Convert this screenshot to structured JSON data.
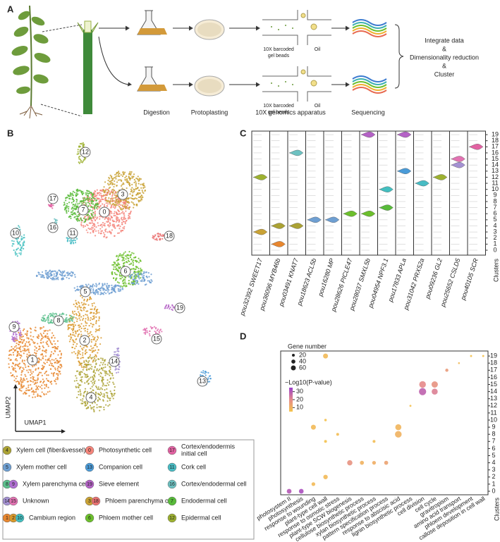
{
  "panel_a": {
    "label": "A",
    "chips": [
      {
        "beads": [
          "10X barcoded",
          "gel beads"
        ],
        "oil": "Oil"
      },
      {
        "beads": [
          "10X barcoded",
          "gel beads"
        ],
        "oil": "Oil"
      }
    ],
    "steps": [
      "Digestion",
      "Protoplasting",
      "10X genomics apparatus",
      "Sequencing"
    ],
    "summary": [
      "Integrate data",
      "&",
      "Dimensionality reduction",
      "&",
      "Cluster"
    ]
  },
  "panel_b": {
    "label": "B",
    "clusters": [
      0,
      1,
      2,
      3,
      4,
      5,
      6,
      7,
      8,
      9,
      10,
      11,
      12,
      13,
      14,
      15,
      16,
      17,
      18,
      19
    ],
    "cluster_colors": [
      "#f4857b",
      "#e8872f",
      "#d9992b",
      "#c9a235",
      "#aba234",
      "#6e9fd2",
      "#6cbf2c",
      "#58bb3a",
      "#5bbf8c",
      "#b06fd2",
      "#43bfc0",
      "#48bcc4",
      "#9db130",
      "#4a9bd8",
      "#a491d2",
      "#e272b2",
      "#6dc1c1",
      "#e262a2",
      "#ea7272",
      "#b462c6"
    ],
    "x_label": "UMAP1",
    "y_label": "UMAP2",
    "legend": [
      {
        "clusters": [
          4
        ],
        "label": "Xylem cell (fiber&vessel)"
      },
      {
        "clusters": [
          5
        ],
        "label": "Xylem mother cell"
      },
      {
        "clusters": [
          8,
          9
        ],
        "label": "Xylem parenchyma cell"
      },
      {
        "clusters": [
          14,
          15
        ],
        "label": "Unknown"
      },
      {
        "clusters": [
          1,
          2,
          10
        ],
        "label": "Cambium region"
      },
      {
        "clusters": [
          0
        ],
        "label": "Photosynthetic cell"
      },
      {
        "clusters": [
          13
        ],
        "label": "Companion cell"
      },
      {
        "clusters": [
          19
        ],
        "label": "Sieve element"
      },
      {
        "clusters": [
          3,
          18
        ],
        "label": "Phloem parenchyma cell"
      },
      {
        "clusters": [
          6
        ],
        "label": "Phloem mother cell"
      },
      {
        "clusters": [
          17
        ],
        "label": [
          "Cortex/endodermis",
          "initial cell"
        ]
      },
      {
        "clusters": [
          11
        ],
        "label": "Cork  cell"
      },
      {
        "clusters": [
          16
        ],
        "label": "Cortex/endodermal cell"
      },
      {
        "clusters": [
          7
        ],
        "label": "Endodermal cell"
      },
      {
        "clusters": [
          12
        ],
        "label": "Epidermal cell"
      }
    ]
  },
  "panel_c": {
    "label": "C",
    "genes": [
      "pou32392 SWEET17",
      "pou36096 MYB46b",
      "pou03491 KNAT7",
      "pou18623 ACL5b",
      "pou16280 MP",
      "pou28626 PICLE47",
      "pou28037 SMXL5b",
      "pou04954 NPF3.1",
      "pou17833 APLa",
      "pou31042 PRX52a",
      "pou09236 GL2",
      "pou25652 CSLD5",
      "pou40105 SCR"
    ],
    "clusters": [
      0,
      1,
      2,
      3,
      4,
      5,
      6,
      7,
      8,
      9,
      10,
      11,
      12,
      13,
      14,
      15,
      16,
      17,
      18,
      19
    ],
    "y_label": "Clusters",
    "violins": [
      {
        "gene": 0,
        "cluster": 3
      },
      {
        "gene": 0,
        "cluster": 12
      },
      {
        "gene": 1,
        "cluster": 1
      },
      {
        "gene": 1,
        "cluster": 4
      },
      {
        "gene": 2,
        "cluster": 4
      },
      {
        "gene": 2,
        "cluster": 16
      },
      {
        "gene": 3,
        "cluster": 5
      },
      {
        "gene": 4,
        "cluster": 5
      },
      {
        "gene": 5,
        "cluster": 6
      },
      {
        "gene": 6,
        "cluster": 6
      },
      {
        "gene": 6,
        "cluster": 19
      },
      {
        "gene": 7,
        "cluster": 7
      },
      {
        "gene": 7,
        "cluster": 10
      },
      {
        "gene": 8,
        "cluster": 13
      },
      {
        "gene": 8,
        "cluster": 19
      },
      {
        "gene": 9,
        "cluster": 11
      },
      {
        "gene": 10,
        "cluster": 12
      },
      {
        "gene": 11,
        "cluster": 14
      },
      {
        "gene": 11,
        "cluster": 15
      },
      {
        "gene": 12,
        "cluster": 17
      }
    ]
  },
  "panel_d": {
    "label": "D",
    "terms": [
      "photosystem II",
      "photosynthesis",
      "response to wounding",
      "plant-type cell wall",
      "response to osmotic stress",
      "plant-type SCW biogenesis",
      "cellulose biosynthetic process",
      "xylan biosynthetic process",
      "pattern specification process",
      "response to abscisic acid",
      "lignin biosynthetic process",
      "cell division",
      "cell cycle",
      "gravitropism",
      "amino acid transport",
      "phloem development",
      "callose deposition in cell wall"
    ],
    "clusters": [
      0,
      1,
      2,
      3,
      4,
      5,
      6,
      7,
      8,
      9,
      10,
      11,
      12,
      13,
      14,
      15,
      16,
      17,
      18,
      19
    ],
    "y_label": "Clusters",
    "size_legend": {
      "title": "Gene number",
      "values": [
        20,
        40,
        60
      ]
    },
    "color_legend": {
      "title": "−Log10(P-value)",
      "ticks": [
        30,
        20,
        10
      ],
      "clim": [
        5,
        35
      ],
      "colors": [
        "#f5c54a",
        "#e58a8a",
        "#9b3fcb"
      ]
    },
    "dots": [
      {
        "term": 3,
        "cluster": 19,
        "genes": 60,
        "log_p": 8
      },
      {
        "term": 15,
        "cluster": 19,
        "genes": 10,
        "log_p": 6
      },
      {
        "term": 16,
        "cluster": 19,
        "genes": 10,
        "log_p": 6
      },
      {
        "term": 14,
        "cluster": 18,
        "genes": 8,
        "log_p": 8
      },
      {
        "term": 13,
        "cluster": 17,
        "genes": 25,
        "log_p": 16
      },
      {
        "term": 11,
        "cluster": 15,
        "genes": 110,
        "log_p": 20
      },
      {
        "term": 12,
        "cluster": 15,
        "genes": 100,
        "log_p": 18
      },
      {
        "term": 11,
        "cluster": 14,
        "genes": 130,
        "log_p": 28
      },
      {
        "term": 12,
        "cluster": 14,
        "genes": 90,
        "log_p": 22
      },
      {
        "term": 10,
        "cluster": 12,
        "genes": 10,
        "log_p": 6
      },
      {
        "term": 3,
        "cluster": 10,
        "genes": 15,
        "log_p": 6
      },
      {
        "term": 2,
        "cluster": 9,
        "genes": 60,
        "log_p": 8
      },
      {
        "term": 9,
        "cluster": 9,
        "genes": 90,
        "log_p": 9
      },
      {
        "term": 4,
        "cluster": 8,
        "genes": 20,
        "log_p": 7
      },
      {
        "term": 9,
        "cluster": 8,
        "genes": 110,
        "log_p": 10
      },
      {
        "term": 3,
        "cluster": 7,
        "genes": 20,
        "log_p": 6
      },
      {
        "term": 7,
        "cluster": 7,
        "genes": 20,
        "log_p": 7
      },
      {
        "term": 5,
        "cluster": 4,
        "genes": 70,
        "log_p": 18
      },
      {
        "term": 6,
        "cluster": 4,
        "genes": 40,
        "log_p": 10
      },
      {
        "term": 7,
        "cluster": 4,
        "genes": 35,
        "log_p": 11
      },
      {
        "term": 8,
        "cluster": 4,
        "genes": 40,
        "log_p": 14
      },
      {
        "term": 3,
        "cluster": 2,
        "genes": 50,
        "log_p": 8
      },
      {
        "term": 2,
        "cluster": 1,
        "genes": 35,
        "log_p": 8
      },
      {
        "term": 0,
        "cluster": 0,
        "genes": 55,
        "log_p": 30
      },
      {
        "term": 1,
        "cluster": 0,
        "genes": 55,
        "log_p": 32
      }
    ]
  }
}
